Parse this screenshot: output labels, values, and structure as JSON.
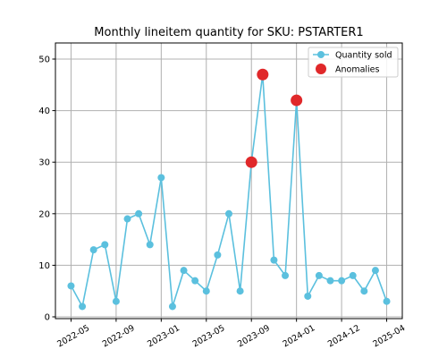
{
  "chart_data": {
    "type": "line",
    "title": "Monthly lineitem quantity for SKU: PSTARTER1",
    "xlabel": "",
    "ylabel": "",
    "ylim": [
      0,
      50
    ],
    "yticks": [
      0,
      10,
      20,
      30,
      40,
      50
    ],
    "xtick_labels": [
      "2022-05",
      "2022-09",
      "2023-01",
      "2023-05",
      "2023-09",
      "2024-01",
      "2024-12",
      "2025-04"
    ],
    "grid": true,
    "legend_position": "top-right",
    "colors": {
      "series": "#5bc0de",
      "anomaly": "#e0282a",
      "grid": "#b0b0b0"
    },
    "series": [
      {
        "name": "Quantity sold",
        "values": [
          6,
          2,
          13,
          14,
          3,
          19,
          20,
          14,
          27,
          2,
          9,
          7,
          5,
          12,
          20,
          5,
          30,
          47,
          11,
          8,
          42,
          4,
          8,
          7,
          7,
          8,
          5,
          9,
          3
        ]
      }
    ],
    "anomalies": {
      "name": "Anomalies",
      "point_indices": [
        16,
        17,
        20
      ],
      "values": [
        30,
        47,
        42
      ]
    }
  }
}
